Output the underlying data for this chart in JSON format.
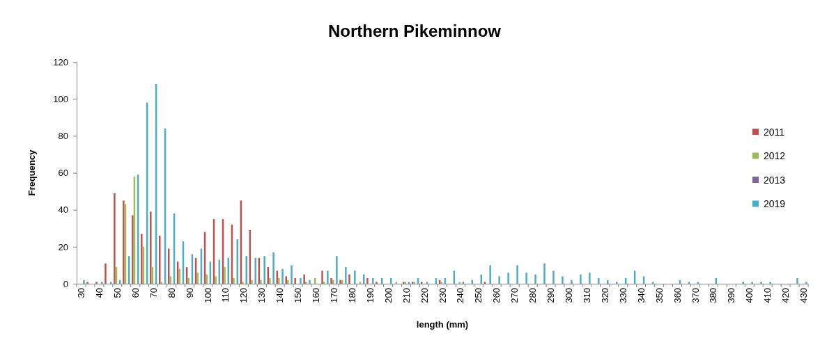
{
  "chart_data": {
    "type": "bar",
    "title": "Northern Pikeminnow",
    "xlabel": "length (mm)",
    "ylabel": "Frequency",
    "categories": [
      "30",
      null,
      "40",
      null,
      "50",
      null,
      "60",
      null,
      "70",
      null,
      "80",
      null,
      "90",
      null,
      "100",
      null,
      "110",
      null,
      "120",
      null,
      "130",
      null,
      "140",
      null,
      "150",
      null,
      "160",
      null,
      "170",
      null,
      "180",
      null,
      "190",
      null,
      "200",
      null,
      "210",
      null,
      "220",
      null,
      "230",
      null,
      "240",
      null,
      "250",
      null,
      "260",
      null,
      "270",
      null,
      "280",
      null,
      "290",
      null,
      "300",
      null,
      "310",
      null,
      "320",
      null,
      "330",
      null,
      "340",
      null,
      "350",
      null,
      "360",
      null,
      "370",
      null,
      "380",
      null,
      "390",
      null,
      "400",
      null,
      "410",
      null,
      "420",
      null,
      "430"
    ],
    "series": [
      {
        "name": "2011",
        "color": "#c0504d",
        "values": [
          null,
          1,
          1,
          11,
          49,
          45,
          37,
          27,
          39,
          26,
          19,
          12,
          9,
          14,
          28,
          35,
          35,
          32,
          45,
          29,
          14,
          9,
          7,
          4,
          3,
          5,
          null,
          7,
          3,
          2,
          5,
          null,
          3,
          1,
          null,
          null,
          1,
          1,
          1,
          null,
          2,
          null,
          null,
          null,
          null,
          1,
          null,
          null,
          null,
          null,
          null,
          null,
          null,
          null,
          null,
          null,
          null,
          null,
          null,
          null,
          null,
          null,
          null,
          null,
          null,
          null,
          null,
          null,
          null,
          null,
          null,
          null,
          null,
          null,
          null,
          null,
          null,
          null,
          null,
          null,
          null
        ]
      },
      {
        "name": "2012",
        "color": "#9bbb59",
        "values": [
          null,
          null,
          null,
          null,
          9,
          43,
          58,
          20,
          9,
          1,
          4,
          8,
          3,
          6,
          5,
          4,
          9,
          3,
          1,
          2,
          2,
          3,
          3,
          2,
          null,
          1,
          3,
          1,
          2,
          2,
          null,
          1,
          null,
          null,
          null,
          1,
          1,
          1,
          null,
          null,
          1,
          null,
          1,
          null,
          null,
          null,
          null,
          null,
          null,
          null,
          null,
          null,
          null,
          null,
          null,
          null,
          null,
          null,
          null,
          null,
          null,
          null,
          null,
          null,
          null,
          null,
          null,
          null,
          null,
          null,
          null,
          null,
          null,
          null,
          null,
          null,
          null,
          null,
          null,
          null,
          null
        ]
      },
      {
        "name": "2013",
        "color": "#8064a2",
        "values": [
          null,
          null,
          null,
          null,
          null,
          null,
          null,
          null,
          null,
          null,
          null,
          null,
          null,
          null,
          null,
          null,
          null,
          null,
          null,
          null,
          null,
          null,
          null,
          null,
          null,
          null,
          null,
          null,
          null,
          null,
          null,
          null,
          null,
          null,
          null,
          null,
          null,
          null,
          null,
          null,
          null,
          null,
          null,
          null,
          null,
          null,
          null,
          null,
          null,
          null,
          null,
          null,
          null,
          null,
          null,
          null,
          null,
          null,
          null,
          null,
          null,
          null,
          null,
          null,
          null,
          null,
          null,
          null,
          null,
          null,
          null,
          null,
          null,
          null,
          null,
          null,
          null,
          null,
          null,
          null,
          null
        ]
      },
      {
        "name": "2019",
        "color": "#4bacc6",
        "values": [
          2,
          null,
          1,
          1,
          2,
          15,
          59,
          98,
          108,
          84,
          38,
          23,
          16,
          19,
          12,
          13,
          14,
          24,
          15,
          14,
          15,
          17,
          8,
          10,
          3,
          2,
          null,
          7,
          15,
          9,
          7,
          5,
          3,
          3,
          3,
          null,
          1,
          3,
          1,
          3,
          3,
          7,
          1,
          2,
          5,
          10,
          4,
          6,
          10,
          6,
          5,
          11,
          7,
          4,
          2,
          5,
          6,
          3,
          2,
          1,
          3,
          7,
          4,
          1,
          null,
          null,
          2,
          1,
          1,
          null,
          3,
          null,
          null,
          1,
          1,
          1,
          1,
          null,
          null,
          3,
          1
        ]
      }
    ],
    "ylim": [
      0,
      120
    ],
    "yticks": [
      0,
      20,
      40,
      60,
      80,
      100,
      120
    ],
    "legend": "right"
  }
}
